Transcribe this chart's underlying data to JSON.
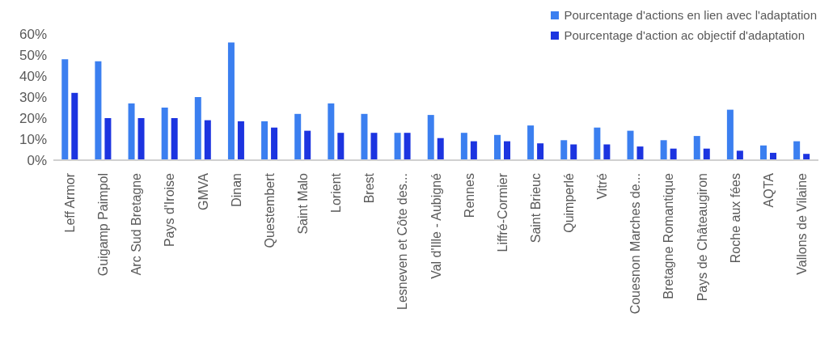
{
  "chart_data": {
    "type": "bar",
    "categories": [
      "Leff Armor",
      "Guigamp Paimpol",
      "Arc Sud Bretagne",
      "Pays d'Iroise",
      "GMVA",
      "Dinan",
      "Questembert",
      "Saint Malo",
      "Lorient",
      "Brest",
      "Lesneven et Côte des...",
      "Val d'Ille - Aubigné",
      "Rennes",
      "Liffré-Cormier",
      "Saint Brieuc",
      "Quimperlé",
      "Vitré",
      "Couesnon Marches de...",
      "Bretagne Romantique",
      "Pays de Châteaugiron",
      "Roche aux fées",
      "AQTA",
      "Vallons de Vilaine"
    ],
    "series": [
      {
        "name": "Pourcentage d'actions en lien avec l'adaptation",
        "color": "#3b7ff0",
        "values": [
          48,
          47,
          27,
          25,
          30,
          56,
          18.5,
          22,
          27,
          22,
          13,
          21.5,
          13,
          12,
          16.5,
          9.5,
          15.5,
          14,
          9.5,
          11.5,
          24,
          7,
          9
        ]
      },
      {
        "name": "Pourcentage d'action ac objectif d'adaptation",
        "color": "#1c34e0",
        "values": [
          32,
          20,
          20,
          20,
          19,
          18.5,
          15.5,
          14,
          13,
          13,
          13,
          10.5,
          9,
          9,
          8,
          7.5,
          7.5,
          6.5,
          5.5,
          5.5,
          4.5,
          3.5,
          3
        ]
      }
    ],
    "ylim": [
      0,
      60
    ],
    "yticks": [
      {
        "value": 0,
        "label": "0%"
      },
      {
        "value": 10,
        "label": "10%"
      },
      {
        "value": 20,
        "label": "20%"
      },
      {
        "value": 30,
        "label": "30%"
      },
      {
        "value": 40,
        "label": "40%"
      },
      {
        "value": 50,
        "label": "50%"
      },
      {
        "value": 60,
        "label": "60%"
      }
    ],
    "grid": false,
    "legend": "top right"
  }
}
